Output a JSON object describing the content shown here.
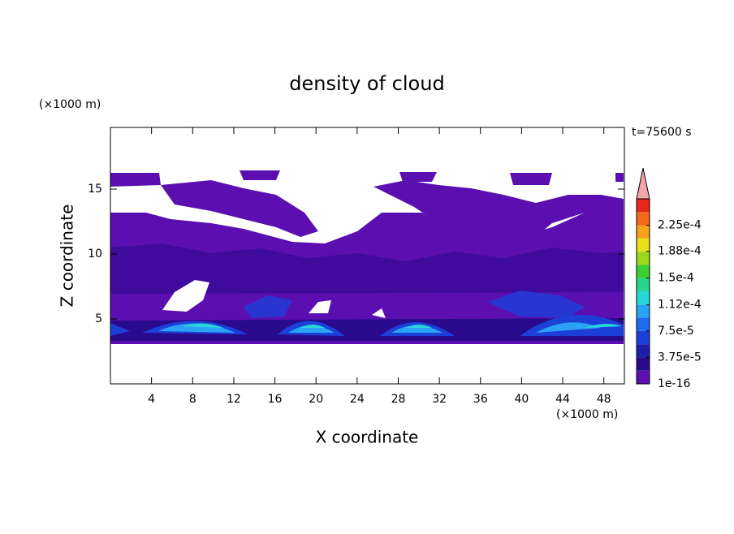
{
  "chart_data": {
    "type": "contour",
    "title": "density of cloud",
    "x_label": "X coordinate",
    "y_label": "Z coordinate",
    "x_unit": "(×1000 m)",
    "y_unit": "(×1000 m)",
    "annotation": "t=75600 s",
    "xlim": [
      0,
      50
    ],
    "ylim": [
      0,
      19.75
    ],
    "xticks": [
      4,
      8,
      12,
      16,
      20,
      24,
      28,
      32,
      36,
      40,
      44,
      48
    ],
    "yticks": [
      5,
      10,
      15
    ],
    "colorbar": {
      "lim": [
        0,
        0.0002625
      ],
      "colors": [
        "#5b0fb0",
        "#2a0a8c",
        "#1e1eaa",
        "#1c3fd8",
        "#1f6cf0",
        "#2aa2f5",
        "#27d6d8",
        "#26d68f",
        "#3ccf2f",
        "#9ad81c",
        "#e9e01a",
        "#f6a21c",
        "#f46a1a",
        "#e8261a"
      ],
      "extend_color": "#f4a6a6",
      "ticks": [
        {
          "value": 1e-16,
          "label": "1e-16"
        },
        {
          "value": 3.75e-05,
          "label": "3.75e-5"
        },
        {
          "value": 7.5e-05,
          "label": "7.5e-5"
        },
        {
          "value": 0.000112,
          "label": "1.12e-4"
        },
        {
          "value": 0.00015,
          "label": "1.5e-4"
        },
        {
          "value": 0.000188,
          "label": "1.88e-4"
        },
        {
          "value": 0.000225,
          "label": "2.25e-4"
        }
      ]
    }
  }
}
